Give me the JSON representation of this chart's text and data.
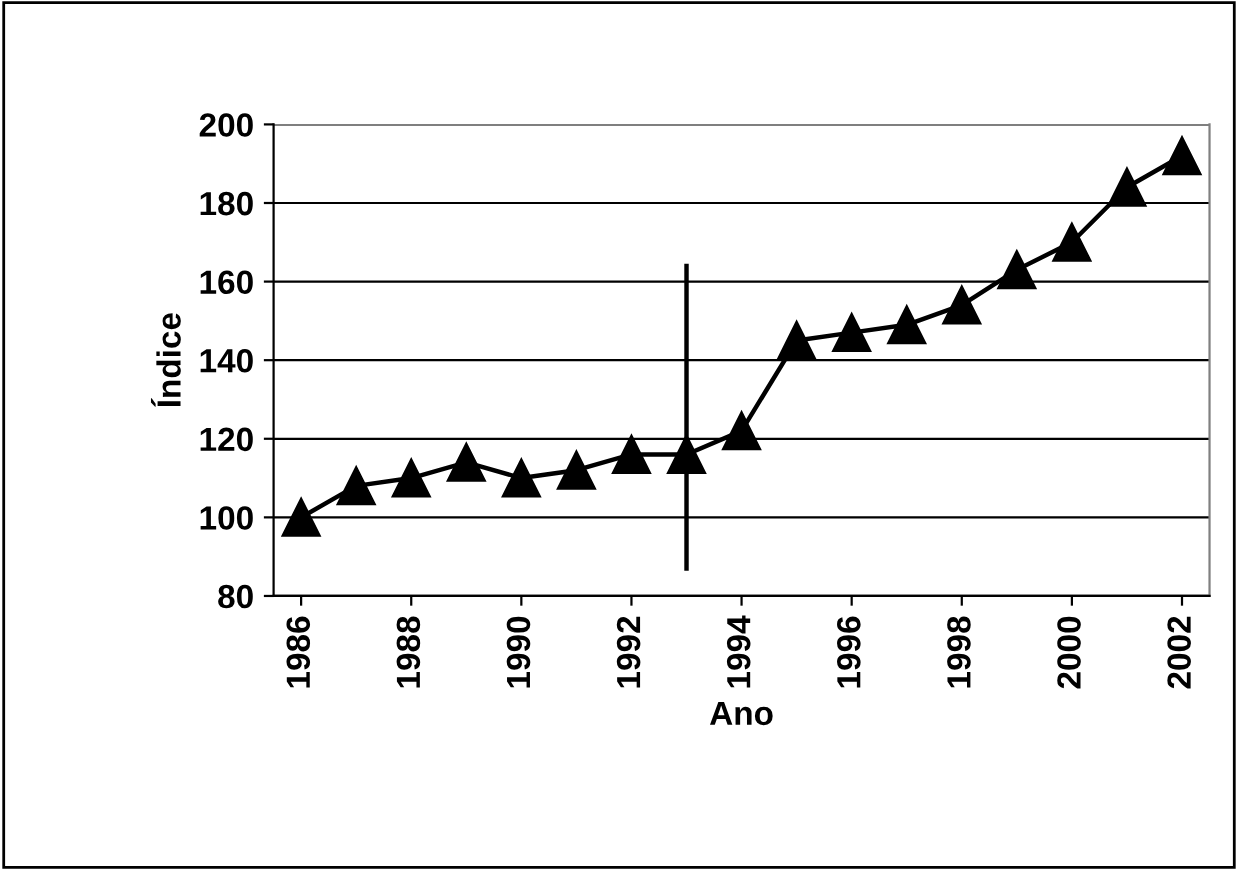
{
  "chart_data": {
    "type": "line",
    "xlabel": "Ano",
    "ylabel": "Índice",
    "x": [
      1986,
      1987,
      1988,
      1989,
      1990,
      1991,
      1992,
      1993,
      1994,
      1995,
      1996,
      1997,
      1998,
      1999,
      2000,
      2001,
      2002
    ],
    "series": [
      {
        "color": "#000000",
        "marker": "triangle",
        "values": [
          100,
          108,
          110,
          114,
          110,
          112,
          116,
          116,
          122,
          145,
          147,
          149,
          154,
          163,
          170,
          184,
          192
        ]
      },
      {
        "color": "#000000",
        "marker": "none",
        "x": [
          1993,
          1993
        ],
        "values": [
          87,
          164
        ]
      }
    ],
    "xlim": [
      1985.5,
      2002.5
    ],
    "xticks": [
      1986,
      1988,
      1990,
      1992,
      1994,
      1996,
      1998,
      2000,
      2002
    ],
    "ylim": [
      80,
      200
    ],
    "yticks": [
      80,
      100,
      120,
      140,
      160,
      180,
      200
    ],
    "grid": "y",
    "line_style": "solid"
  }
}
